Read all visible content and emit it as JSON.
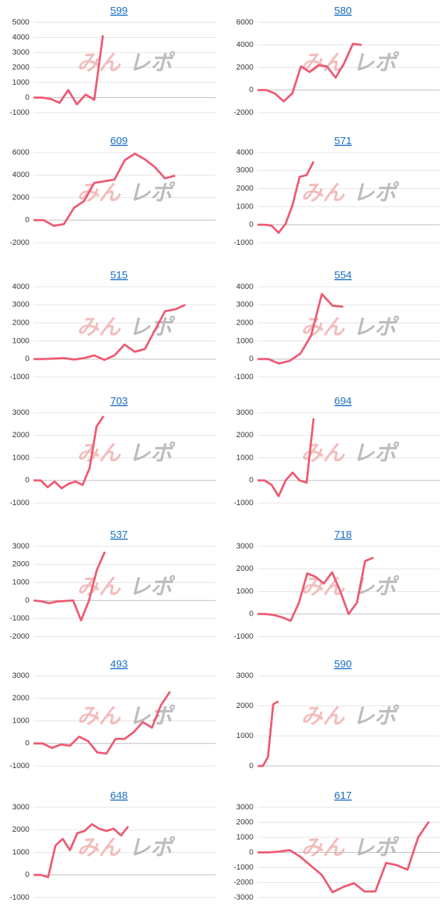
{
  "watermark": [
    "みん",
    "レポ"
  ],
  "chart_data": [
    {
      "type": "line",
      "title": "599",
      "color": "#ee5a73",
      "grid": true,
      "ylim": [
        -1000,
        5000
      ],
      "yticks": [
        -1000,
        0,
        1000,
        2000,
        3000,
        4000,
        5000
      ],
      "values": [
        0,
        0,
        -100,
        -350,
        500,
        -450,
        200,
        -150,
        4150,
        null,
        null,
        null,
        null,
        null,
        null,
        null,
        null,
        null,
        null,
        null,
        null,
        null
      ]
    },
    {
      "type": "line",
      "title": "580",
      "color": "#ee5a73",
      "grid": true,
      "ylim": [
        -2000,
        6000
      ],
      "yticks": [
        -2000,
        0,
        2000,
        4000,
        6000
      ],
      "values": [
        0,
        0,
        -300,
        -1000,
        -300,
        2100,
        1600,
        2200,
        2100,
        1100,
        2400,
        4100,
        4000,
        null,
        null,
        null,
        null,
        null,
        null,
        null,
        null,
        null
      ]
    },
    {
      "type": "line",
      "title": "609",
      "color": "#ee5a73",
      "grid": true,
      "ylim": [
        -2000,
        6000
      ],
      "yticks": [
        -2000,
        0,
        2000,
        4000,
        6000
      ],
      "values": [
        0,
        0,
        -500,
        -350,
        1100,
        1700,
        3300,
        3450,
        3600,
        5300,
        5900,
        5400,
        4700,
        3700,
        3950,
        null,
        null,
        null,
        null
      ]
    },
    {
      "type": "line",
      "title": "571",
      "color": "#ee5a73",
      "grid": true,
      "ylim": [
        -1000,
        4000
      ],
      "yticks": [
        -1000,
        0,
        1000,
        2000,
        3000,
        4000
      ],
      "values": [
        0,
        0,
        -50,
        -450,
        50,
        1100,
        2650,
        2750,
        3500,
        null,
        null,
        null,
        null,
        null,
        null,
        null,
        null,
        null,
        null,
        null,
        null,
        null,
        null,
        null,
        null,
        null,
        null
      ]
    },
    {
      "type": "line",
      "title": "515",
      "color": "#ee5a73",
      "grid": true,
      "ylim": [
        -1000,
        4000
      ],
      "yticks": [
        -1000,
        0,
        1000,
        2000,
        3000,
        4000
      ],
      "values": [
        0,
        0,
        20,
        50,
        -30,
        50,
        200,
        -50,
        200,
        800,
        400,
        550,
        1600,
        2650,
        2750,
        3000,
        null,
        null,
        null
      ]
    },
    {
      "type": "line",
      "title": "554",
      "color": "#ee5a73",
      "grid": true,
      "ylim": [
        -1000,
        4000
      ],
      "yticks": [
        -1000,
        0,
        1000,
        2000,
        3000,
        4000
      ],
      "values": [
        0,
        0,
        -250,
        -100,
        300,
        1300,
        3600,
        2950,
        2900,
        null,
        null,
        null,
        null,
        null,
        null,
        null,
        null,
        null
      ]
    },
    {
      "type": "line",
      "title": "703",
      "color": "#ee5a73",
      "grid": true,
      "ylim": [
        -1000,
        3000
      ],
      "yticks": [
        -1000,
        0,
        1000,
        2000,
        3000
      ],
      "values": [
        0,
        0,
        -300,
        -50,
        -350,
        -150,
        -50,
        -200,
        550,
        2400,
        2850,
        null,
        null,
        null,
        null,
        null,
        null,
        null,
        null,
        null,
        null,
        null,
        null,
        null,
        null,
        null,
        null
      ]
    },
    {
      "type": "line",
      "title": "694",
      "color": "#ee5a73",
      "grid": true,
      "ylim": [
        -1000,
        3000
      ],
      "yticks": [
        -1000,
        0,
        1000,
        2000,
        3000
      ],
      "values": [
        0,
        0,
        -200,
        -700,
        0,
        350,
        0,
        -100,
        2750,
        null,
        null,
        null,
        null,
        null,
        null,
        null,
        null,
        null,
        null,
        null,
        null,
        null,
        null,
        null,
        null,
        null,
        null
      ]
    },
    {
      "type": "line",
      "title": "537",
      "color": "#ee5a73",
      "grid": true,
      "ylim": [
        -2000,
        3000
      ],
      "yticks": [
        -2000,
        -1000,
        0,
        1000,
        2000,
        3000
      ],
      "values": [
        0,
        -50,
        -150,
        -50,
        -30,
        0,
        -1100,
        0,
        1700,
        2700,
        null,
        null,
        null,
        null,
        null,
        null,
        null,
        null,
        null,
        null,
        null,
        null,
        null,
        null
      ]
    },
    {
      "type": "line",
      "title": "718",
      "color": "#ee5a73",
      "grid": true,
      "ylim": [
        -1000,
        3000
      ],
      "yticks": [
        -1000,
        0,
        1000,
        2000,
        3000
      ],
      "values": [
        0,
        0,
        -50,
        -150,
        -300,
        500,
        1800,
        1650,
        1350,
        1850,
        1000,
        0,
        500,
        2350,
        2500,
        null,
        null,
        null,
        null,
        null,
        null,
        null,
        null
      ]
    },
    {
      "type": "line",
      "title": "493",
      "color": "#ee5a73",
      "grid": true,
      "ylim": [
        -1000,
        3000
      ],
      "yticks": [
        -1000,
        0,
        1000,
        2000,
        3000
      ],
      "values": [
        0,
        0,
        -200,
        -50,
        -100,
        300,
        100,
        -400,
        -450,
        200,
        200,
        500,
        950,
        700,
        1700,
        2300,
        null,
        null,
        null,
        null,
        null
      ]
    },
    {
      "type": "line",
      "title": "590",
      "color": "#ee5a73",
      "grid": true,
      "ylim": [
        0,
        3000
      ],
      "yticks": [
        0,
        1000,
        2000,
        3000
      ],
      "values": [
        0,
        0,
        300,
        2050,
        2150,
        null,
        null,
        null,
        null,
        null,
        null,
        null,
        null,
        null,
        null,
        null,
        null,
        null,
        null,
        null,
        null,
        null,
        null,
        null,
        null,
        null,
        null,
        null,
        null,
        null,
        null,
        null,
        null,
        null,
        null,
        null
      ]
    },
    {
      "type": "line",
      "title": "648",
      "color": "#ee5a73",
      "grid": true,
      "ylim": [
        -1000,
        3000
      ],
      "yticks": [
        -1000,
        0,
        1000,
        2000,
        3000
      ],
      "values": [
        0,
        0,
        -100,
        1300,
        1600,
        1100,
        1850,
        1950,
        2250,
        2050,
        1950,
        2050,
        1750,
        2150,
        null,
        null,
        null,
        null,
        null,
        null,
        null,
        null,
        null,
        null,
        null,
        null
      ]
    },
    {
      "type": "line",
      "title": "617",
      "color": "#ee5a73",
      "grid": true,
      "ylim": [
        -3000,
        3000
      ],
      "yticks": [
        -3000,
        -2000,
        -1000,
        0,
        1000,
        2000,
        3000
      ],
      "values": [
        0,
        0,
        50,
        150,
        -300,
        -900,
        -1500,
        -2650,
        -2300,
        -2050,
        -2600,
        -2600,
        -700,
        -850,
        -1150,
        1000,
        2050,
        null
      ]
    }
  ]
}
